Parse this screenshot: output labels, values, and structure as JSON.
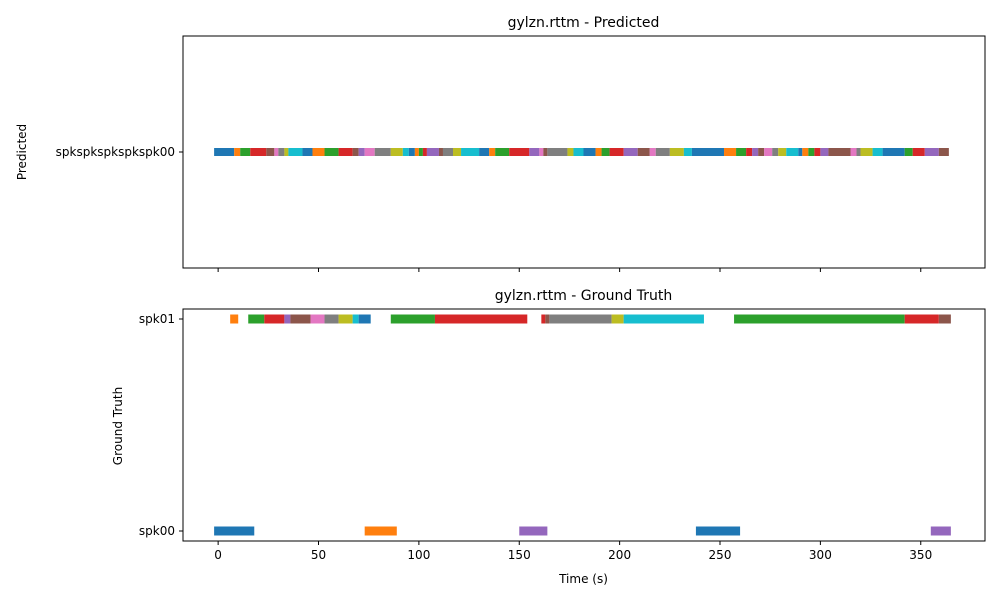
{
  "colors": [
    "#1f77b4",
    "#ff7f0e",
    "#2ca02c",
    "#d62728",
    "#9467bd",
    "#8c564b",
    "#e377c2",
    "#7f7f7f",
    "#bcbd22",
    "#17becf"
  ],
  "chart_data": [
    {
      "type": "broken_barh",
      "title": "gylzn.rttm - Predicted",
      "ylabel": "Predicted",
      "xlabel": "",
      "xlim": [
        -17.5,
        382
      ],
      "xticks": [
        0,
        50,
        100,
        150,
        200,
        250,
        300,
        350
      ],
      "show_xtick_labels": false,
      "categories": [
        "spkspkspkspkspk00"
      ],
      "segments": [
        {
          "speaker": "spkspkspkspkspk00",
          "start": -2,
          "end": 8,
          "color": "#1f77b4"
        },
        {
          "speaker": "spkspkspkspkspk00",
          "start": 8,
          "end": 11,
          "color": "#ff7f0e"
        },
        {
          "speaker": "spkspkspkspkspk00",
          "start": 11,
          "end": 16,
          "color": "#2ca02c"
        },
        {
          "speaker": "spkspkspkspkspk00",
          "start": 16,
          "end": 24,
          "color": "#d62728"
        },
        {
          "speaker": "spkspkspkspkspk00",
          "start": 24,
          "end": 28,
          "color": "#8c564b"
        },
        {
          "speaker": "spkspkspkspkspk00",
          "start": 28,
          "end": 30,
          "color": "#e377c2"
        },
        {
          "speaker": "spkspkspkspkspk00",
          "start": 30,
          "end": 33,
          "color": "#7f7f7f"
        },
        {
          "speaker": "spkspkspkspkspk00",
          "start": 33,
          "end": 35,
          "color": "#bcbd22"
        },
        {
          "speaker": "spkspkspkspkspk00",
          "start": 35,
          "end": 42,
          "color": "#17becf"
        },
        {
          "speaker": "spkspkspkspkspk00",
          "start": 42,
          "end": 47,
          "color": "#1f77b4"
        },
        {
          "speaker": "spkspkspkspkspk00",
          "start": 47,
          "end": 53,
          "color": "#ff7f0e"
        },
        {
          "speaker": "spkspkspkspkspk00",
          "start": 53,
          "end": 60,
          "color": "#2ca02c"
        },
        {
          "speaker": "spkspkspkspkspk00",
          "start": 60,
          "end": 67,
          "color": "#d62728"
        },
        {
          "speaker": "spkspkspkspkspk00",
          "start": 67,
          "end": 70,
          "color": "#8c564b"
        },
        {
          "speaker": "spkspkspkspkspk00",
          "start": 70,
          "end": 73,
          "color": "#9467bd"
        },
        {
          "speaker": "spkspkspkspkspk00",
          "start": 73,
          "end": 78,
          "color": "#e377c2"
        },
        {
          "speaker": "spkspkspkspkspk00",
          "start": 78,
          "end": 86,
          "color": "#7f7f7f"
        },
        {
          "speaker": "spkspkspkspkspk00",
          "start": 86,
          "end": 92,
          "color": "#bcbd22"
        },
        {
          "speaker": "spkspkspkspkspk00",
          "start": 92,
          "end": 95,
          "color": "#17becf"
        },
        {
          "speaker": "spkspkspkspkspk00",
          "start": 95,
          "end": 98,
          "color": "#1f77b4"
        },
        {
          "speaker": "spkspkspkspkspk00",
          "start": 98,
          "end": 100,
          "color": "#ff7f0e"
        },
        {
          "speaker": "spkspkspkspkspk00",
          "start": 100,
          "end": 102,
          "color": "#2ca02c"
        },
        {
          "speaker": "spkspkspkspkspk00",
          "start": 102,
          "end": 104,
          "color": "#d62728"
        },
        {
          "speaker": "spkspkspkspkspk00",
          "start": 104,
          "end": 110,
          "color": "#9467bd"
        },
        {
          "speaker": "spkspkspkspkspk00",
          "start": 110,
          "end": 112,
          "color": "#8c564b"
        },
        {
          "speaker": "spkspkspkspkspk00",
          "start": 112,
          "end": 117,
          "color": "#7f7f7f"
        },
        {
          "speaker": "spkspkspkspkspk00",
          "start": 117,
          "end": 121,
          "color": "#bcbd22"
        },
        {
          "speaker": "spkspkspkspkspk00",
          "start": 121,
          "end": 130,
          "color": "#17becf"
        },
        {
          "speaker": "spkspkspkspkspk00",
          "start": 130,
          "end": 135,
          "color": "#1f77b4"
        },
        {
          "speaker": "spkspkspkspkspk00",
          "start": 135,
          "end": 138,
          "color": "#ff7f0e"
        },
        {
          "speaker": "spkspkspkspkspk00",
          "start": 138,
          "end": 145,
          "color": "#2ca02c"
        },
        {
          "speaker": "spkspkspkspkspk00",
          "start": 145,
          "end": 155,
          "color": "#d62728"
        },
        {
          "speaker": "spkspkspkspkspk00",
          "start": 155,
          "end": 160,
          "color": "#9467bd"
        },
        {
          "speaker": "spkspkspkspkspk00",
          "start": 160,
          "end": 162,
          "color": "#e377c2"
        },
        {
          "speaker": "spkspkspkspkspk00",
          "start": 162,
          "end": 164,
          "color": "#8c564b"
        },
        {
          "speaker": "spkspkspkspkspk00",
          "start": 164,
          "end": 174,
          "color": "#7f7f7f"
        },
        {
          "speaker": "spkspkspkspkspk00",
          "start": 174,
          "end": 177,
          "color": "#bcbd22"
        },
        {
          "speaker": "spkspkspkspkspk00",
          "start": 177,
          "end": 182,
          "color": "#17becf"
        },
        {
          "speaker": "spkspkspkspkspk00",
          "start": 182,
          "end": 188,
          "color": "#1f77b4"
        },
        {
          "speaker": "spkspkspkspkspk00",
          "start": 188,
          "end": 191,
          "color": "#ff7f0e"
        },
        {
          "speaker": "spkspkspkspkspk00",
          "start": 191,
          "end": 195,
          "color": "#2ca02c"
        },
        {
          "speaker": "spkspkspkspkspk00",
          "start": 195,
          "end": 202,
          "color": "#d62728"
        },
        {
          "speaker": "spkspkspkspkspk00",
          "start": 202,
          "end": 209,
          "color": "#9467bd"
        },
        {
          "speaker": "spkspkspkspkspk00",
          "start": 209,
          "end": 215,
          "color": "#8c564b"
        },
        {
          "speaker": "spkspkspkspkspk00",
          "start": 215,
          "end": 218,
          "color": "#e377c2"
        },
        {
          "speaker": "spkspkspkspkspk00",
          "start": 218,
          "end": 225,
          "color": "#7f7f7f"
        },
        {
          "speaker": "spkspkspkspkspk00",
          "start": 225,
          "end": 232,
          "color": "#bcbd22"
        },
        {
          "speaker": "spkspkspkspkspk00",
          "start": 232,
          "end": 236,
          "color": "#17becf"
        },
        {
          "speaker": "spkspkspkspkspk00",
          "start": 236,
          "end": 252,
          "color": "#1f77b4"
        },
        {
          "speaker": "spkspkspkspkspk00",
          "start": 252,
          "end": 258,
          "color": "#ff7f0e"
        },
        {
          "speaker": "spkspkspkspkspk00",
          "start": 258,
          "end": 263,
          "color": "#2ca02c"
        },
        {
          "speaker": "spkspkspkspkspk00",
          "start": 263,
          "end": 266,
          "color": "#d62728"
        },
        {
          "speaker": "spkspkspkspkspk00",
          "start": 266,
          "end": 269,
          "color": "#9467bd"
        },
        {
          "speaker": "spkspkspkspkspk00",
          "start": 269,
          "end": 272,
          "color": "#8c564b"
        },
        {
          "speaker": "spkspkspkspkspk00",
          "start": 272,
          "end": 276,
          "color": "#e377c2"
        },
        {
          "speaker": "spkspkspkspkspk00",
          "start": 276,
          "end": 279,
          "color": "#7f7f7f"
        },
        {
          "speaker": "spkspkspkspkspk00",
          "start": 279,
          "end": 283,
          "color": "#bcbd22"
        },
        {
          "speaker": "spkspkspkspkspk00",
          "start": 283,
          "end": 289,
          "color": "#17becf"
        },
        {
          "speaker": "spkspkspkspkspk00",
          "start": 289,
          "end": 291,
          "color": "#1f77b4"
        },
        {
          "speaker": "spkspkspkspkspk00",
          "start": 291,
          "end": 294,
          "color": "#ff7f0e"
        },
        {
          "speaker": "spkspkspkspkspk00",
          "start": 294,
          "end": 297,
          "color": "#2ca02c"
        },
        {
          "speaker": "spkspkspkspkspk00",
          "start": 297,
          "end": 300,
          "color": "#d62728"
        },
        {
          "speaker": "spkspkspkspkspk00",
          "start": 300,
          "end": 304,
          "color": "#9467bd"
        },
        {
          "speaker": "spkspkspkspkspk00",
          "start": 304,
          "end": 315,
          "color": "#8c564b"
        },
        {
          "speaker": "spkspkspkspkspk00",
          "start": 315,
          "end": 318,
          "color": "#e377c2"
        },
        {
          "speaker": "spkspkspkspkspk00",
          "start": 318,
          "end": 320,
          "color": "#7f7f7f"
        },
        {
          "speaker": "spkspkspkspkspk00",
          "start": 320,
          "end": 326,
          "color": "#bcbd22"
        },
        {
          "speaker": "spkspkspkspkspk00",
          "start": 326,
          "end": 331,
          "color": "#17becf"
        },
        {
          "speaker": "spkspkspkspkspk00",
          "start": 331,
          "end": 342,
          "color": "#1f77b4"
        },
        {
          "speaker": "spkspkspkspkspk00",
          "start": 342,
          "end": 346,
          "color": "#2ca02c"
        },
        {
          "speaker": "spkspkspkspkspk00",
          "start": 346,
          "end": 352,
          "color": "#d62728"
        },
        {
          "speaker": "spkspkspkspkspk00",
          "start": 352,
          "end": 359,
          "color": "#9467bd"
        },
        {
          "speaker": "spkspkspkspkspk00",
          "start": 359,
          "end": 364,
          "color": "#8c564b"
        }
      ]
    },
    {
      "type": "broken_barh",
      "title": "gylzn.rttm - Ground Truth",
      "ylabel": "Ground Truth",
      "xlabel": "Time (s)",
      "xlim": [
        -17.5,
        382
      ],
      "xticks": [
        0,
        50,
        100,
        150,
        200,
        250,
        300,
        350
      ],
      "show_xtick_labels": true,
      "categories": [
        "spk00",
        "spk01"
      ],
      "segments": [
        {
          "speaker": "spk00",
          "start": -2,
          "end": 18,
          "color": "#1f77b4"
        },
        {
          "speaker": "spk00",
          "start": 73,
          "end": 89,
          "color": "#ff7f0e"
        },
        {
          "speaker": "spk00",
          "start": 150,
          "end": 164,
          "color": "#9467bd"
        },
        {
          "speaker": "spk00",
          "start": 238,
          "end": 260,
          "color": "#1f77b4"
        },
        {
          "speaker": "spk00",
          "start": 355,
          "end": 365,
          "color": "#9467bd"
        },
        {
          "speaker": "spk01",
          "start": 6,
          "end": 10,
          "color": "#ff7f0e"
        },
        {
          "speaker": "spk01",
          "start": 15,
          "end": 23,
          "color": "#2ca02c"
        },
        {
          "speaker": "spk01",
          "start": 23,
          "end": 33,
          "color": "#d62728"
        },
        {
          "speaker": "spk01",
          "start": 33,
          "end": 36,
          "color": "#9467bd"
        },
        {
          "speaker": "spk01",
          "start": 36,
          "end": 46,
          "color": "#8c564b"
        },
        {
          "speaker": "spk01",
          "start": 46,
          "end": 53,
          "color": "#e377c2"
        },
        {
          "speaker": "spk01",
          "start": 53,
          "end": 60,
          "color": "#7f7f7f"
        },
        {
          "speaker": "spk01",
          "start": 60,
          "end": 67,
          "color": "#bcbd22"
        },
        {
          "speaker": "spk01",
          "start": 67,
          "end": 70,
          "color": "#17becf"
        },
        {
          "speaker": "spk01",
          "start": 70,
          "end": 76,
          "color": "#1f77b4"
        },
        {
          "speaker": "spk01",
          "start": 86,
          "end": 108,
          "color": "#2ca02c"
        },
        {
          "speaker": "spk01",
          "start": 108,
          "end": 154,
          "color": "#d62728"
        },
        {
          "speaker": "spk01",
          "start": 161,
          "end": 163,
          "color": "#d62728"
        },
        {
          "speaker": "spk01",
          "start": 163,
          "end": 165,
          "color": "#8c564b"
        },
        {
          "speaker": "spk01",
          "start": 165,
          "end": 196,
          "color": "#7f7f7f"
        },
        {
          "speaker": "spk01",
          "start": 196,
          "end": 202,
          "color": "#bcbd22"
        },
        {
          "speaker": "spk01",
          "start": 202,
          "end": 242,
          "color": "#17becf"
        },
        {
          "speaker": "spk01",
          "start": 257,
          "end": 342,
          "color": "#2ca02c"
        },
        {
          "speaker": "spk01",
          "start": 342,
          "end": 359,
          "color": "#d62728"
        },
        {
          "speaker": "spk01",
          "start": 359,
          "end": 365,
          "color": "#8c564b"
        }
      ]
    }
  ]
}
